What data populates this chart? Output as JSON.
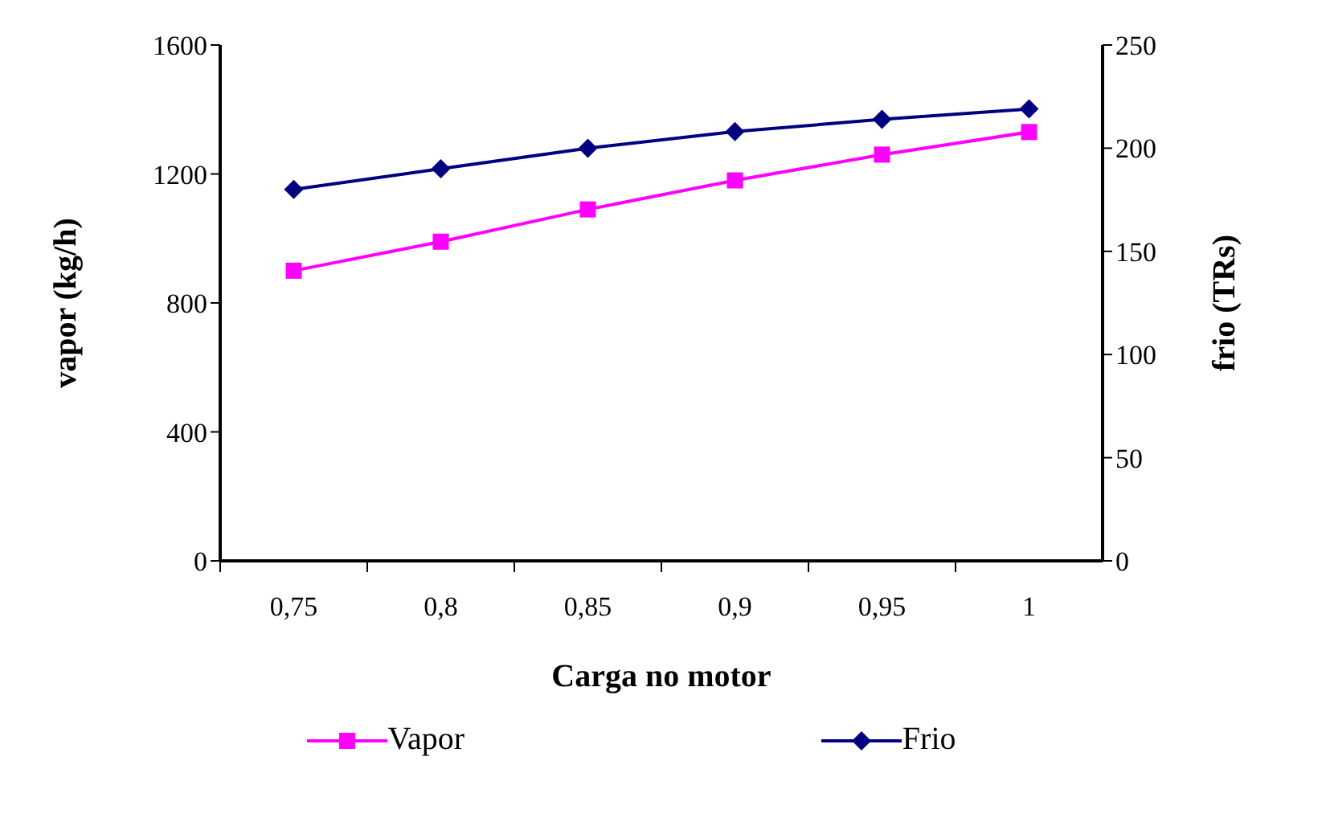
{
  "chart_data": {
    "type": "line",
    "xlabel": "Carga no motor",
    "ylabel": "vapor (kg/h)",
    "y2label": "frio (TRs)",
    "categories": [
      "0,75",
      "0,8",
      "0,85",
      "0,9",
      "0,95",
      "1"
    ],
    "series": [
      {
        "name": "Vapor",
        "color": "#ff00ff",
        "marker": "square",
        "values": [
          900,
          990,
          1090,
          1180,
          1260,
          1330
        ]
      },
      {
        "name": "Frio",
        "color": "#000080",
        "marker": "diamond",
        "axis": "y2",
        "values": [
          180,
          190,
          200,
          208,
          214,
          219
        ]
      }
    ],
    "ylim": [
      0,
      1600
    ],
    "yticks": [
      0,
      400,
      800,
      1200,
      1600
    ],
    "y2lim": [
      0,
      250
    ],
    "y2ticks": [
      0,
      50,
      100,
      150,
      200,
      250
    ],
    "grid": false,
    "legend": "bottom",
    "line_style": "solid"
  }
}
